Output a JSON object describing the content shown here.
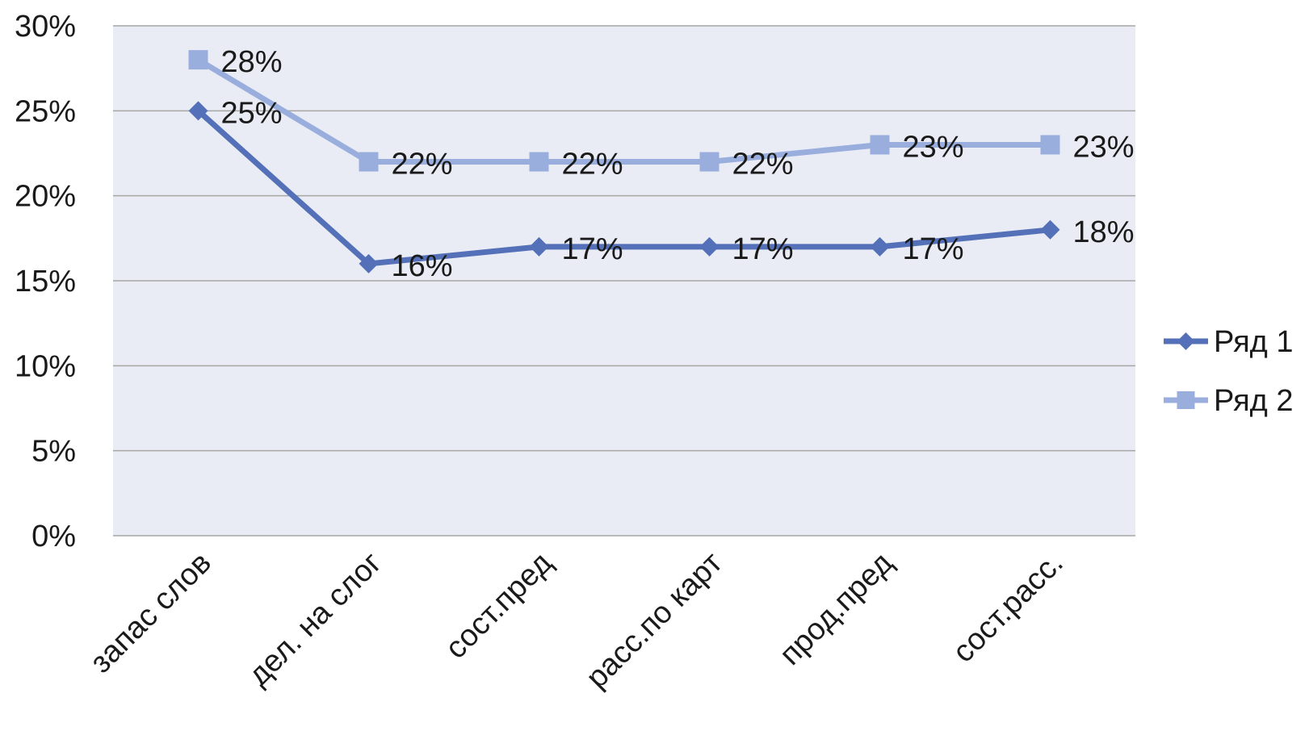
{
  "chart_data": {
    "type": "line",
    "categories": [
      "запас слов",
      "дел. на слог",
      "сост.пред",
      "расс.по карт",
      "прод.пред",
      "сост.расс."
    ],
    "series": [
      {
        "name": "Ряд 1",
        "values": [
          25,
          16,
          17,
          17,
          17,
          18
        ],
        "labels": [
          "25%",
          "16%",
          "17%",
          "17%",
          "17%",
          "18%"
        ],
        "color": "#5470b8",
        "marker": "diamond"
      },
      {
        "name": "Ряд 2",
        "values": [
          28,
          22,
          22,
          22,
          23,
          23
        ],
        "labels": [
          "28%",
          "22%",
          "22%",
          "22%",
          "23%",
          "23%"
        ],
        "color": "#9aaede",
        "marker": "square"
      }
    ],
    "ylim": [
      0,
      30
    ],
    "yticks": [
      0,
      5,
      10,
      15,
      20,
      25,
      30
    ],
    "ytick_labels": [
      "0%",
      "5%",
      "10%",
      "15%",
      "20%",
      "25%",
      "30%"
    ],
    "grid": true,
    "plot_background": "#e9ecf4",
    "gridline_color": "#a6a6a6",
    "legend_position": "right"
  }
}
